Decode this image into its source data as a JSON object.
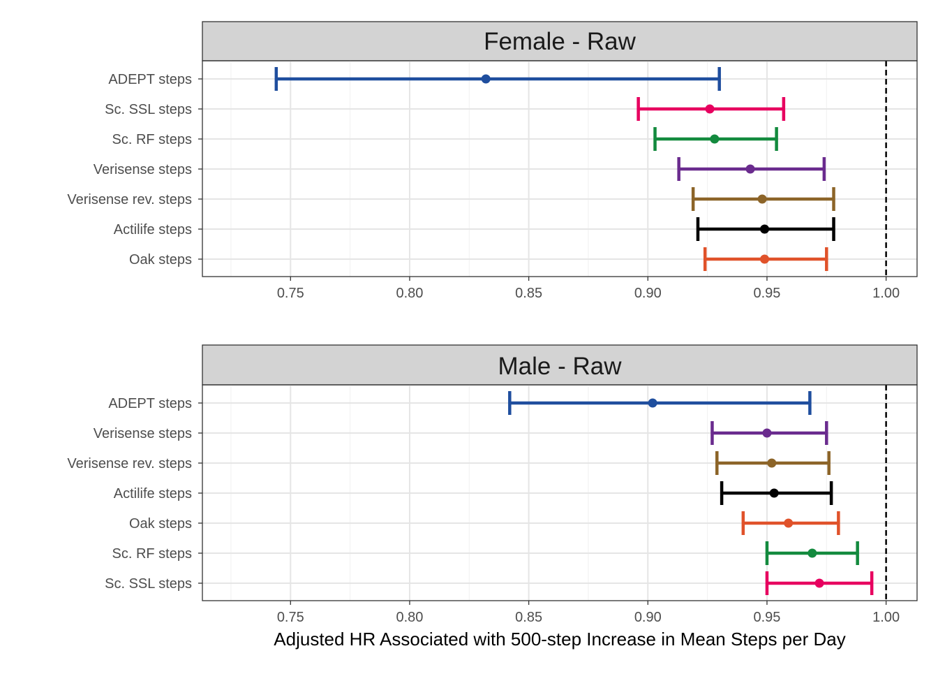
{
  "chart_data": [
    {
      "type": "forest",
      "panel_title": "Female - Raw",
      "xlim": [
        0.713,
        1.013
      ],
      "x_ticks": [
        "0.75",
        "0.80",
        "0.85",
        "0.90",
        "0.95",
        "1.00"
      ],
      "reference_line": 1.0,
      "grid": true,
      "rows": [
        {
          "label": "ADEPT steps",
          "estimate": 0.832,
          "lower": 0.744,
          "upper": 0.93,
          "color": "#1F4E9E"
        },
        {
          "label": "Sc. SSL steps",
          "estimate": 0.926,
          "lower": 0.896,
          "upper": 0.957,
          "color": "#E7005F"
        },
        {
          "label": "Sc. RF steps",
          "estimate": 0.928,
          "lower": 0.903,
          "upper": 0.954,
          "color": "#138A3E"
        },
        {
          "label": "Verisense steps",
          "estimate": 0.943,
          "lower": 0.913,
          "upper": 0.974,
          "color": "#6A2B8E"
        },
        {
          "label": "Verisense rev. steps",
          "estimate": 0.948,
          "lower": 0.919,
          "upper": 0.978,
          "color": "#8C6428"
        },
        {
          "label": "Actilife steps",
          "estimate": 0.949,
          "lower": 0.921,
          "upper": 0.978,
          "color": "#000000"
        },
        {
          "label": "Oak steps",
          "estimate": 0.949,
          "lower": 0.924,
          "upper": 0.975,
          "color": "#E0522A"
        }
      ]
    },
    {
      "type": "forest",
      "panel_title": "Male - Raw",
      "xlim": [
        0.713,
        1.013
      ],
      "x_ticks": [
        "0.75",
        "0.80",
        "0.85",
        "0.90",
        "0.95",
        "1.00"
      ],
      "reference_line": 1.0,
      "grid": true,
      "xlabel": "Adjusted HR Associated with 500-step Increase in Mean Steps per Day",
      "rows": [
        {
          "label": "ADEPT steps",
          "estimate": 0.902,
          "lower": 0.842,
          "upper": 0.968,
          "color": "#1F4E9E"
        },
        {
          "label": "Verisense steps",
          "estimate": 0.95,
          "lower": 0.927,
          "upper": 0.975,
          "color": "#6A2B8E"
        },
        {
          "label": "Verisense rev. steps",
          "estimate": 0.952,
          "lower": 0.929,
          "upper": 0.976,
          "color": "#8C6428"
        },
        {
          "label": "Actilife steps",
          "estimate": 0.953,
          "lower": 0.931,
          "upper": 0.977,
          "color": "#000000"
        },
        {
          "label": "Oak steps",
          "estimate": 0.959,
          "lower": 0.94,
          "upper": 0.98,
          "color": "#E0522A"
        },
        {
          "label": "Sc. RF steps",
          "estimate": 0.969,
          "lower": 0.95,
          "upper": 0.988,
          "color": "#138A3E"
        },
        {
          "label": "Sc. SSL steps",
          "estimate": 0.972,
          "lower": 0.95,
          "upper": 0.994,
          "color": "#E7005F"
        }
      ]
    }
  ]
}
